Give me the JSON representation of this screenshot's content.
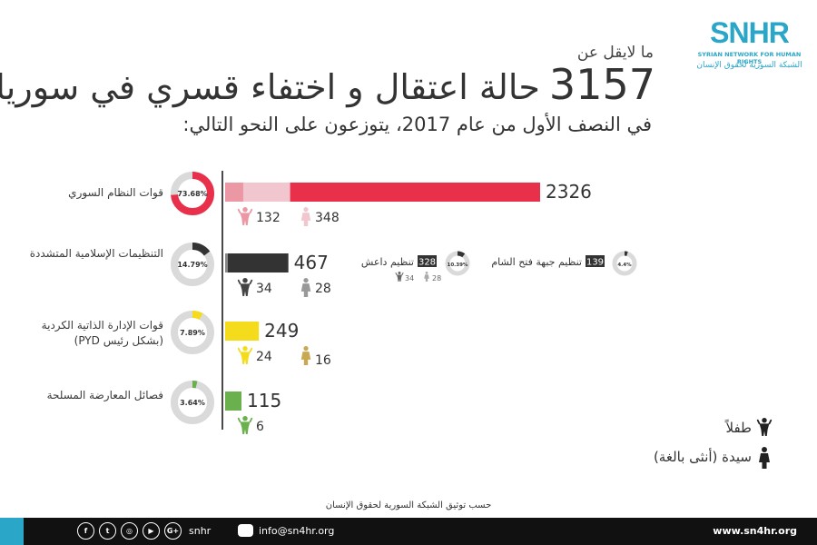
{
  "header": {
    "logo_title": "SNHR",
    "logo_en": "SYRIAN NETWORK FOR HUMAN RIGHTS",
    "logo_ar": "الشبكة السورية لحقوق الإنسان",
    "intro": "ما لايقل عن",
    "headline_number": "3157",
    "headline_text": "حالة اعتقال و اختفاء قسري في سوريا",
    "subtitle": "في النصف الأول من عام 2017، يتوزعون على النحو التالي:"
  },
  "colors": {
    "regime": "#e8304a",
    "regime_light": "#f2c6cf",
    "regime_mid": "#ec97a4",
    "extremist": "#333333",
    "kurdish": "#f4dc1c",
    "opposition": "#6ab04c",
    "axis": "#4a4a4a",
    "brand": "#2aa6c8"
  },
  "chart_data": {
    "type": "bar",
    "orientation": "horizontal",
    "categories": [
      "قوات النظام السوري",
      "التنظيمات الإسلامية المتشددة",
      "قوات الإدارة الذاتية الكردية (بشكل رئيس PYD)",
      "فصائل المعارضة المسلحة"
    ],
    "values": [
      2326,
      467,
      249,
      115
    ],
    "value_labels": [
      "2326",
      "467",
      "249",
      "115"
    ],
    "percentages": [
      "73.68%",
      "14.79%",
      "7.89%",
      "3.64%"
    ],
    "percent_values": [
      73.68,
      14.79,
      7.89,
      3.64
    ],
    "children": [
      132,
      34,
      24,
      6
    ],
    "children_labels": [
      "132",
      "34",
      "24",
      "6"
    ],
    "women": [
      348,
      28,
      16,
      null
    ],
    "women_labels": [
      "348",
      "28",
      "16",
      ""
    ],
    "sub_breakdown": [
      {
        "name": "تنظيم داعش",
        "value": 328,
        "label": "328",
        "percent": "10.39%",
        "percent_value": 10.39,
        "children": "34",
        "women": "28"
      },
      {
        "name": "تنظيم جبهة فتح الشام",
        "value": 139,
        "label": "139",
        "percent": "4.4%",
        "percent_value": 4.4
      }
    ],
    "legend": [
      {
        "name": "طفلاً",
        "icon": "child-icon"
      },
      {
        "name": "سيدة (أنثى بالغة)",
        "icon": "woman-icon"
      }
    ]
  },
  "footer": {
    "source": "حسب توثيق الشبكة السورية لحقوق الإنسان",
    "social_icons": [
      "facebook-icon",
      "twitter-icon",
      "instagram-icon",
      "youtube-icon",
      "googleplus-icon",
      "flickr-icon"
    ],
    "handle": "snhr",
    "email": "info@sn4hr.org",
    "website": "www.sn4hr.org"
  }
}
